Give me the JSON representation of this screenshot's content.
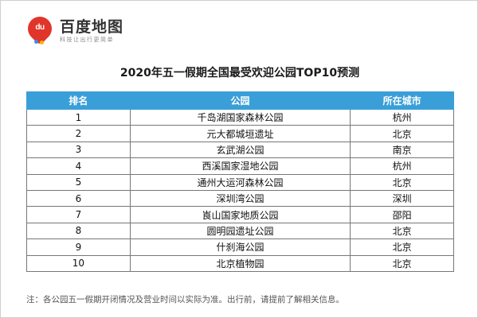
{
  "logo": {
    "badge": "du",
    "name": "百度地图",
    "slogan": "科技让出行更简单"
  },
  "title": "2020年五一假期全国最受欢迎公园TOP10预测",
  "table": {
    "headers": [
      "排名",
      "公园",
      "所在城市"
    ],
    "rows": [
      [
        "1",
        "千岛湖国家森林公园",
        "杭州"
      ],
      [
        "2",
        "元大都城垣遗址",
        "北京"
      ],
      [
        "3",
        "玄武湖公园",
        "南京"
      ],
      [
        "4",
        "西溪国家湿地公园",
        "杭州"
      ],
      [
        "5",
        "通州大运河森林公园",
        "北京"
      ],
      [
        "6",
        "深圳湾公园",
        "深圳"
      ],
      [
        "7",
        "崀山国家地质公园",
        "邵阳"
      ],
      [
        "8",
        "圆明园遗址公园",
        "北京"
      ],
      [
        "9",
        "什刹海公园",
        "北京"
      ],
      [
        "10",
        "北京植物园",
        "北京"
      ]
    ]
  },
  "note": "注：各公园五一假期开闭情况及营业时间以实际为准。出行前，请提前了解相关信息。",
  "colors": {
    "header": "#3a9fd8",
    "brand": "#e0352b"
  }
}
